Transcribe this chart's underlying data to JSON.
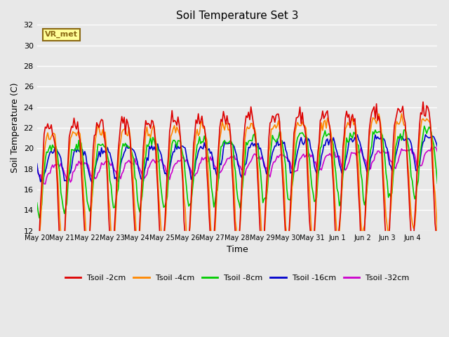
{
  "title": "Soil Temperature Set 3",
  "xlabel": "Time",
  "ylabel": "Soil Temperature (C)",
  "ylim": [
    12,
    32
  ],
  "yticks": [
    12,
    14,
    16,
    18,
    20,
    22,
    24,
    26,
    28,
    30,
    32
  ],
  "background_color": "#e8e8e8",
  "plot_bg_color": "#e8e8e8",
  "grid_color": "white",
  "annotation_text": "VR_met",
  "annotation_bg": "#ffff99",
  "annotation_border": "#8b6914",
  "colors": {
    "Tsoil -2cm": "#dd0000",
    "Tsoil -4cm": "#ff8800",
    "Tsoil -8cm": "#00cc00",
    "Tsoil -16cm": "#0000cc",
    "Tsoil -32cm": "#cc00cc"
  },
  "x_tick_labels": [
    "May 20",
    "May 21",
    "May 22",
    "May 23",
    "May 24",
    "May 25",
    "May 26",
    "May 27",
    "May 28",
    "May 29",
    "May 30",
    "May 31",
    "Jun 1",
    "Jun 2",
    "Jun 3",
    "Jun 4"
  ],
  "num_points": 336
}
